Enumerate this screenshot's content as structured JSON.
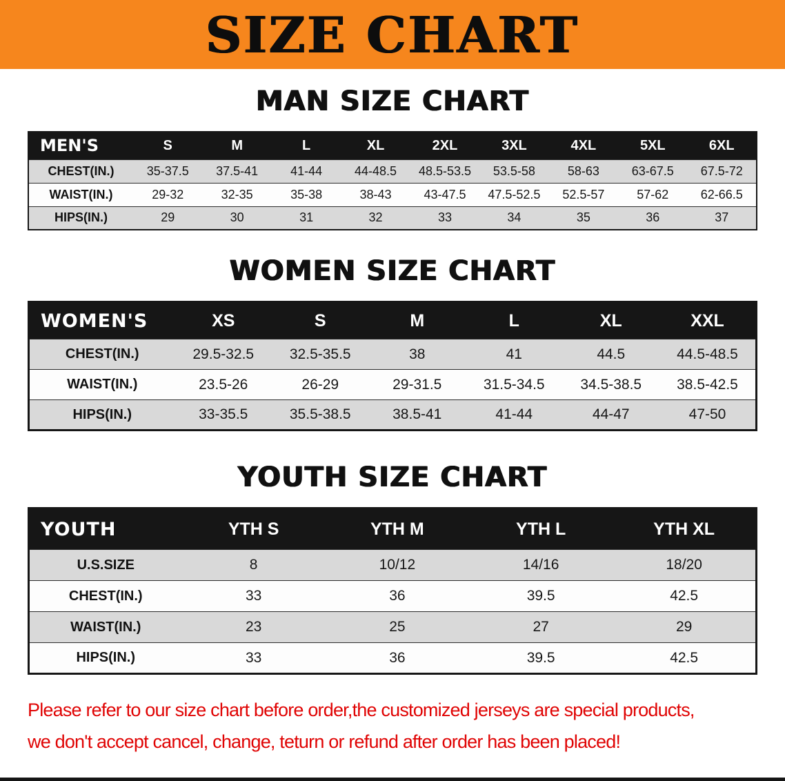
{
  "banner": {
    "title": "SIZE CHART"
  },
  "colors": {
    "banner_orange": "#F6861D",
    "header_black": "#161616",
    "row_gray": "#d9d9d9",
    "row_white": "#fdfdfd",
    "disclaimer_red": "#e00404"
  },
  "sections": [
    {
      "heading": "MAN SIZE CHART",
      "table": {
        "header": [
          "MEN'S",
          "S",
          "M",
          "L",
          "XL",
          "2XL",
          "3XL",
          "4XL",
          "5XL",
          "6XL"
        ],
        "rows": [
          {
            "label": "CHEST(IN.)",
            "values": [
              "35-37.5",
              "37.5-41",
              "41-44",
              "44-48.5",
              "48.5-53.5",
              "53.5-58",
              "58-63",
              "63-67.5",
              "67.5-72"
            ]
          },
          {
            "label": "WAIST(IN.)",
            "values": [
              "29-32",
              "32-35",
              "35-38",
              "38-43",
              "43-47.5",
              "47.5-52.5",
              "52.5-57",
              "57-62",
              "62-66.5"
            ]
          },
          {
            "label": "HIPS(IN.)",
            "values": [
              "29",
              "30",
              "31",
              "32",
              "33",
              "34",
              "35",
              "36",
              "37"
            ]
          }
        ]
      }
    },
    {
      "heading": "WOMEN SIZE CHART",
      "table": {
        "header": [
          "WOMEN'S",
          "XS",
          "S",
          "M",
          "L",
          "XL",
          "XXL"
        ],
        "rows": [
          {
            "label": "CHEST(IN.)",
            "values": [
              "29.5-32.5",
              "32.5-35.5",
              "38",
              "41",
              "44.5",
              "44.5-48.5"
            ]
          },
          {
            "label": "WAIST(IN.)",
            "values": [
              "23.5-26",
              "26-29",
              "29-31.5",
              "31.5-34.5",
              "34.5-38.5",
              "38.5-42.5"
            ]
          },
          {
            "label": "HIPS(IN.)",
            "values": [
              "33-35.5",
              "35.5-38.5",
              "38.5-41",
              "41-44",
              "44-47",
              "47-50"
            ]
          }
        ]
      }
    },
    {
      "heading": "YOUTH SIZE CHART",
      "table": {
        "header": [
          "YOUTH",
          "YTH S",
          "YTH M",
          "YTH L",
          "YTH XL"
        ],
        "rows": [
          {
            "label": "U.S.SIZE",
            "values": [
              "8",
              "10/12",
              "14/16",
              "18/20"
            ]
          },
          {
            "label": "CHEST(IN.)",
            "values": [
              "33",
              "36",
              "39.5",
              "42.5"
            ]
          },
          {
            "label": "WAIST(IN.)",
            "values": [
              "23",
              "25",
              "27",
              "29"
            ]
          },
          {
            "label": "HIPS(IN.)",
            "values": [
              "33",
              "36",
              "39.5",
              "42.5"
            ]
          }
        ]
      }
    }
  ],
  "disclaimer": {
    "line1": "Please refer to our size chart before order,the customized jerseys are special products,",
    "line2": "we don't accept cancel, change, teturn or refund after order has been placed!"
  }
}
